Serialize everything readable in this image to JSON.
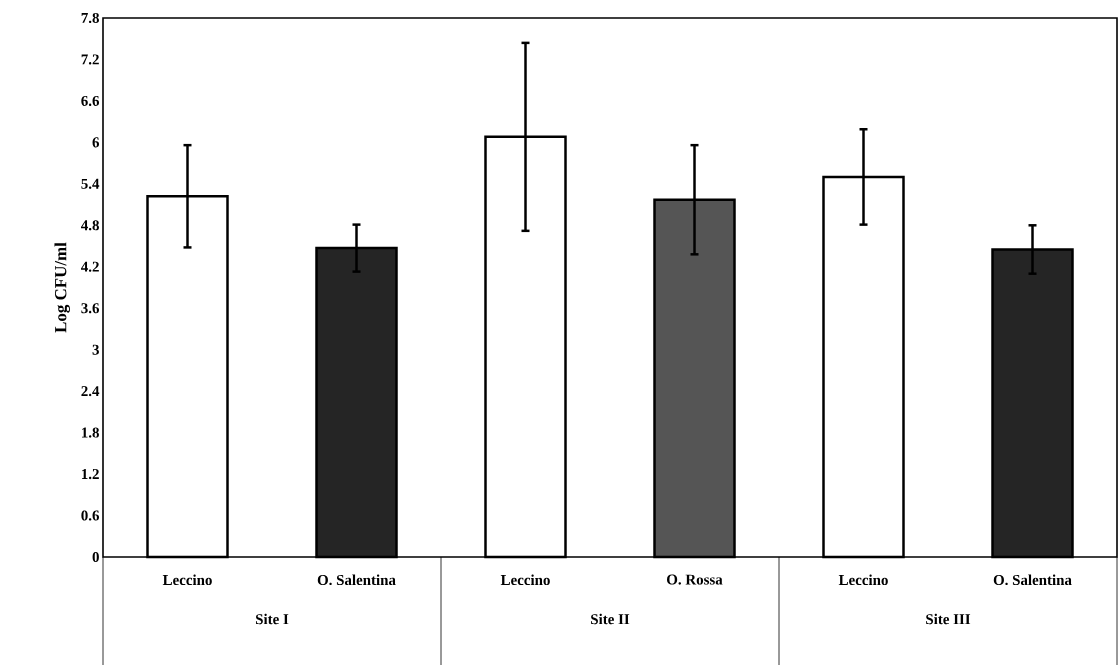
{
  "chart_data": {
    "type": "bar",
    "ylabel": "Log CFU/ml",
    "categories": [
      "Leccino",
      "O. Salentina",
      "Leccino",
      "O. Rossa",
      "Leccino",
      "O. Salentina"
    ],
    "values": [
      5.22,
      4.47,
      6.08,
      5.17,
      5.5,
      4.45
    ],
    "errors": [
      0.74,
      0.34,
      1.36,
      0.79,
      0.69,
      0.35
    ],
    "colors": [
      "#ffffff",
      "#252525",
      "#ffffff",
      "#555555",
      "#ffffff",
      "#252525"
    ],
    "ylim": [
      0,
      7.8
    ],
    "yticks": [
      0,
      0.6,
      1.2,
      1.8,
      2.4,
      3,
      3.6,
      4.2,
      4.8,
      5.4,
      6,
      6.6,
      7.2,
      7.8
    ],
    "annotations": [
      "Site I",
      "Site II",
      "Site III"
    ]
  }
}
